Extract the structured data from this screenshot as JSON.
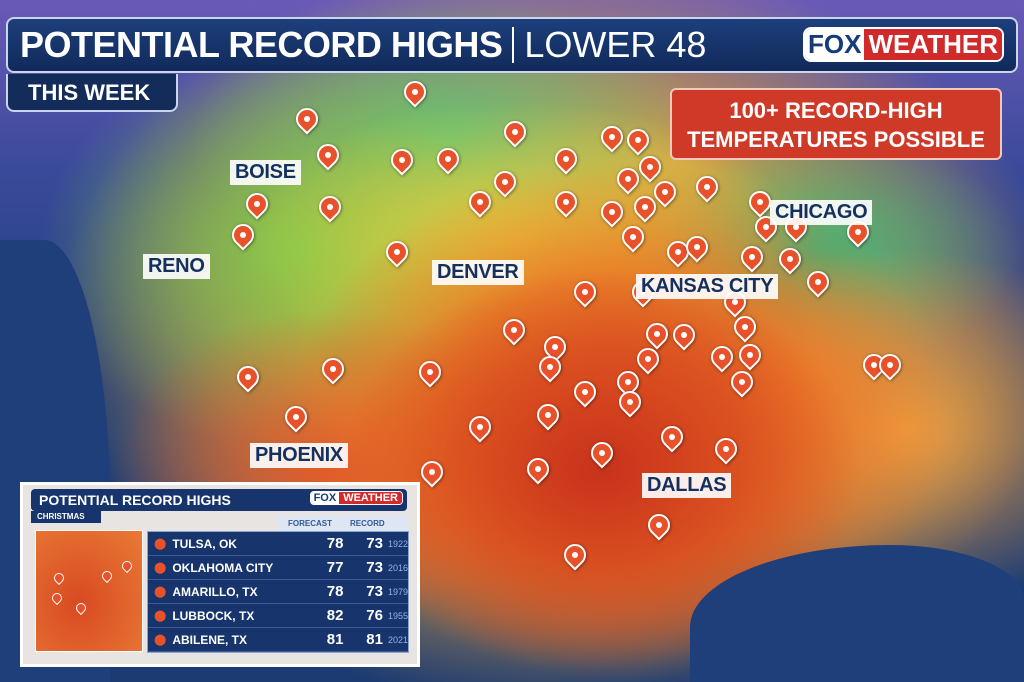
{
  "header": {
    "title": "POTENTIAL RECORD HIGHS",
    "subtitle": "LOWER 48",
    "logo_fox": "FOX",
    "logo_weather": "WEATHER",
    "period": "THIS WEEK"
  },
  "callout": {
    "line1": "100+ RECORD-HIGH",
    "line2": "TEMPERATURES POSSIBLE",
    "color": "#cf3a28"
  },
  "map": {
    "cities": [
      "BOISE",
      "RENO",
      "DENVER",
      "KANSAS CITY",
      "CHICAGO",
      "PHOENIX",
      "DALLAS"
    ],
    "pin_color": "#e8512a",
    "pin_icon": "map-pin-icon"
  },
  "inset": {
    "title": "POTENTIAL RECORD HIGHS",
    "tag": "CHRISTMAS",
    "logo_fox": "FOX",
    "logo_weather": "WEATHER",
    "columns": {
      "forecast": "FORECAST",
      "record": "RECORD"
    },
    "rows": [
      {
        "city": "TULSA, OK",
        "forecast": "78",
        "record": "73",
        "year": "1922"
      },
      {
        "city": "OKLAHOMA CITY",
        "forecast": "77",
        "record": "73",
        "year": "2016"
      },
      {
        "city": "AMARILLO, TX",
        "forecast": "78",
        "record": "73",
        "year": "1979"
      },
      {
        "city": "LUBBOCK, TX",
        "forecast": "82",
        "record": "76",
        "year": "1955"
      },
      {
        "city": "ABILENE, TX",
        "forecast": "81",
        "record": "81",
        "year": "2021"
      }
    ]
  }
}
